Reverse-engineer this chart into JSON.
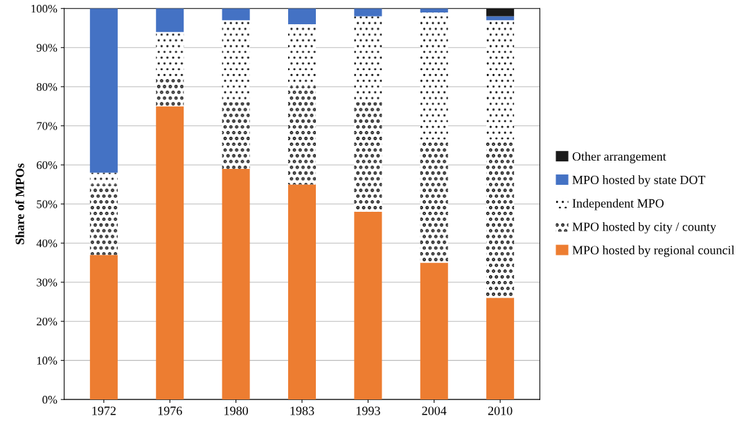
{
  "chart_data": {
    "type": "bar",
    "stacked": true,
    "ylabel": "Share of MPOs",
    "categories": [
      "1972",
      "1976",
      "1980",
      "1983",
      "1993",
      "2004",
      "2010"
    ],
    "series": [
      {
        "name": "MPO hosted by regional council",
        "color": "#ed7d31",
        "values": [
          37,
          75,
          59,
          55,
          48,
          35,
          26
        ]
      },
      {
        "name": "MPO hosted by city / county",
        "color": "#ffffff",
        "values": [
          18,
          7,
          17,
          25,
          28,
          31,
          40
        ]
      },
      {
        "name": "Independent MPO",
        "color": "#ffffff",
        "values": [
          3,
          12,
          21,
          16,
          22,
          33,
          31
        ]
      },
      {
        "name": "MPO hosted by state DOT",
        "color": "#4472c4",
        "values": [
          42,
          6,
          3,
          4,
          2,
          1,
          1
        ]
      },
      {
        "name": "Other arrangement",
        "color": "#1a1a1a",
        "values": [
          0,
          0,
          0,
          0,
          0,
          0,
          2
        ]
      }
    ],
    "ylim": [
      0,
      100
    ],
    "yticks": [
      {
        "value": 0,
        "label": "0%"
      },
      {
        "value": 10,
        "label": "10%"
      },
      {
        "value": 20,
        "label": "20%"
      },
      {
        "value": 30,
        "label": "30%"
      },
      {
        "value": 40,
        "label": "40%"
      },
      {
        "value": 50,
        "label": "50%"
      },
      {
        "value": 60,
        "label": "60%"
      },
      {
        "value": 70,
        "label": "70%"
      },
      {
        "value": 80,
        "label": "80%"
      },
      {
        "value": 90,
        "label": "90%"
      },
      {
        "value": 100,
        "label": "100%"
      }
    ],
    "grid": "y",
    "legend": "right"
  }
}
